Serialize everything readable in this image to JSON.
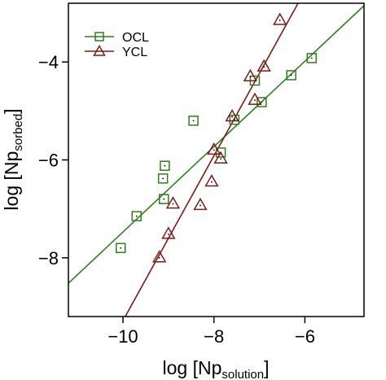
{
  "chart_data": {
    "type": "scatter",
    "xlabel": {
      "main": "log [Np",
      "sub": "solution",
      "close": "]"
    },
    "ylabel": {
      "main": "log [Np",
      "sub": "sorbed",
      "close": "]"
    },
    "xlim": [
      -11.2,
      -4.7
    ],
    "ylim": [
      -9.2,
      -2.8
    ],
    "xticks": [
      -10,
      -8,
      -6
    ],
    "yticks": [
      -8,
      -6,
      -4
    ],
    "xtick_labels": [
      "−10",
      "−8",
      "−6"
    ],
    "ytick_labels": [
      "−8",
      "−6",
      "−4"
    ],
    "legend_position": "top-left",
    "series": [
      {
        "name": "OCL",
        "marker": "square",
        "color": "#2e7d1f",
        "points": [
          [
            -10.05,
            -7.8
          ],
          [
            -9.7,
            -7.15
          ],
          [
            -9.1,
            -6.8
          ],
          [
            -9.12,
            -6.38
          ],
          [
            -9.08,
            -6.12
          ],
          [
            -8.45,
            -5.2
          ],
          [
            -7.85,
            -5.85
          ],
          [
            -7.55,
            -5.18
          ],
          [
            -7.1,
            -4.38
          ],
          [
            -6.95,
            -4.82
          ],
          [
            -6.3,
            -4.27
          ],
          [
            -5.85,
            -3.92
          ]
        ],
        "fit": {
          "x": [
            -11.2,
            -4.7
          ],
          "y": [
            -8.52,
            -2.85
          ]
        }
      },
      {
        "name": "YCL",
        "marker": "triangle",
        "color": "#7b1a1a",
        "points": [
          [
            -9.2,
            -8.0
          ],
          [
            -9.0,
            -7.52
          ],
          [
            -8.9,
            -6.9
          ],
          [
            -8.3,
            -6.93
          ],
          [
            -8.05,
            -6.45
          ],
          [
            -8.0,
            -5.8
          ],
          [
            -7.85,
            -5.98
          ],
          [
            -7.6,
            -5.12
          ],
          [
            -7.2,
            -4.3
          ],
          [
            -7.1,
            -4.78
          ],
          [
            -6.9,
            -4.1
          ],
          [
            -6.55,
            -3.15
          ]
        ],
        "fit": {
          "x": [
            -9.95,
            -6.15
          ],
          "y": [
            -9.2,
            -2.8
          ]
        }
      }
    ]
  }
}
